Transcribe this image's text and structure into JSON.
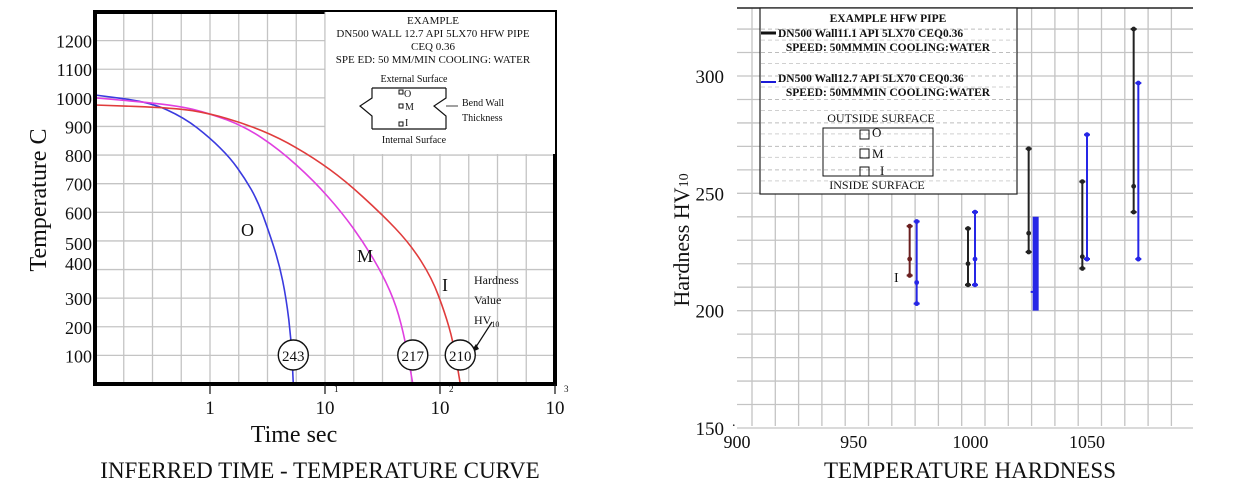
{
  "chart_data": [
    {
      "type": "line",
      "title": "INFERRED TIME - TEMPERATURE  CURVE",
      "xlabel": "Time sec",
      "ylabel": "Temperature C",
      "xscale": "log",
      "xlim": [
        0.1,
        1000
      ],
      "ylim": [
        0,
        1300
      ],
      "grid": true,
      "x_tick_labels": [
        {
          "value": 1,
          "base": "1",
          "exp": ""
        },
        {
          "value": 10,
          "base": "10",
          "exp": "1"
        },
        {
          "value": 100,
          "base": "10",
          "exp": "2"
        },
        {
          "value": 1000,
          "base": "10",
          "exp": "3"
        }
      ],
      "y_tick_labels": [
        "1200",
        "1100",
        "1000",
        "900",
        "800",
        "700",
        "600",
        "500",
        "400",
        "300",
        "200",
        "100"
      ],
      "series": [
        {
          "name": "O",
          "color": "#3a3adf",
          "label": "O",
          "hardness": "243",
          "points": [
            [
              0.1,
              1010
            ],
            [
              0.3,
              985
            ],
            [
              0.6,
              930
            ],
            [
              1.0,
              860
            ],
            [
              1.5,
              790
            ],
            [
              2.0,
              720
            ],
            [
              2.6,
              640
            ],
            [
              3.2,
              540
            ],
            [
              4.0,
              420
            ],
            [
              4.6,
              300
            ],
            [
              5.1,
              150
            ],
            [
              5.3,
              0
            ]
          ]
        },
        {
          "name": "M",
          "color": "#e040e0",
          "label": "M",
          "hardness": "217",
          "points": [
            [
              0.1,
              1000
            ],
            [
              0.5,
              975
            ],
            [
              1.0,
              945
            ],
            [
              2.0,
              900
            ],
            [
              4.0,
              820
            ],
            [
              8.0,
              710
            ],
            [
              14,
              600
            ],
            [
              22,
              490
            ],
            [
              32,
              380
            ],
            [
              42,
              270
            ],
            [
              50,
              150
            ],
            [
              58,
              0
            ]
          ]
        },
        {
          "name": "I",
          "color": "#e03c3c",
          "label": "I",
          "hardness": "210",
          "points": [
            [
              0.1,
              975
            ],
            [
              0.5,
              965
            ],
            [
              1.0,
              945
            ],
            [
              2.0,
              910
            ],
            [
              4.0,
              860
            ],
            [
              8.0,
              790
            ],
            [
              15,
              710
            ],
            [
              30,
              600
            ],
            [
              55,
              490
            ],
            [
              85,
              370
            ],
            [
              110,
              250
            ],
            [
              130,
              150
            ],
            [
              150,
              0
            ]
          ]
        }
      ],
      "annotations": {
        "hardness_label": [
          "Hardness",
          "Value",
          "HV",
          "10"
        ],
        "legend_box": {
          "title": "EXAMPLE",
          "line1": "DN500 WALL 12.7 API 5LX70 HFW  PIPE",
          "line2": "CEQ 0.36",
          "line3": "SPE ED: 50 MM/MIN COOLING: WATER",
          "external": "External Surface",
          "internal": "Internal Surface",
          "points": [
            "O",
            "M",
            "I"
          ],
          "bend_label": [
            "Bend Wall",
            "Thickness"
          ]
        }
      }
    },
    {
      "type": "errorbar",
      "title": "",
      "xlabel": "TEMPERATURE HARDNESS",
      "ylabel": "Hardness HV10",
      "xlim": [
        900,
        1090
      ],
      "ylim": [
        150,
        330
      ],
      "x_ticks": [
        900,
        950,
        1000,
        1050
      ],
      "y_ticks": [
        150,
        200,
        250,
        300
      ],
      "grid": true,
      "legend": {
        "title": "EXAMPLE HFW PIPE",
        "entries": [
          {
            "name": "DN500 Wall11.1 API 5LX70 CEQ0.36",
            "sub": "SPEED: 50MMMIN COOLING:WATER",
            "color": "#111111"
          },
          {
            "name": "DN500 Wall12.7 API 5LX70 CEQ0.36",
            "sub": "SPEED: 50MMMIN COOLING:WATER",
            "color": "#1a1ad8"
          }
        ],
        "outside": "OUTSIDE SURFACE",
        "inside": "INSIDE SURFACE",
        "points": [
          "O",
          "M",
          "I"
        ]
      },
      "series": [
        {
          "name": "Wall 11.1",
          "color": "#222222",
          "bars": [
            {
              "x": 974,
              "top": 236,
              "mid": 222,
              "bottom": 215,
              "color": "#6b1f1f"
            },
            {
              "x": 999,
              "top": 235,
              "mid": 220,
              "bottom": 211
            },
            {
              "x": 1025,
              "top": 269,
              "mid": 233,
              "bottom": 225
            },
            {
              "x": 1048,
              "top": 255,
              "mid": 223,
              "bottom": 218
            },
            {
              "x": 1070,
              "top": 320,
              "mid": 253,
              "bottom": 242
            }
          ]
        },
        {
          "name": "Wall 12.7",
          "color": "#2626e6",
          "bars": [
            {
              "x": 977,
              "top": 238,
              "mid": 212,
              "bottom": 203
            },
            {
              "x": 1002,
              "top": 242,
              "mid": 222,
              "bottom": 211
            },
            {
              "x": 1028,
              "top": 240,
              "mid": 208,
              "bottom": 200,
              "thick": true
            },
            {
              "x": 1050,
              "top": 275,
              "mid": 222,
              "bottom": 222
            },
            {
              "x": 1072,
              "top": 297,
              "mid": 222,
              "bottom": 222
            }
          ]
        }
      ],
      "stray_label": "I"
    }
  ]
}
